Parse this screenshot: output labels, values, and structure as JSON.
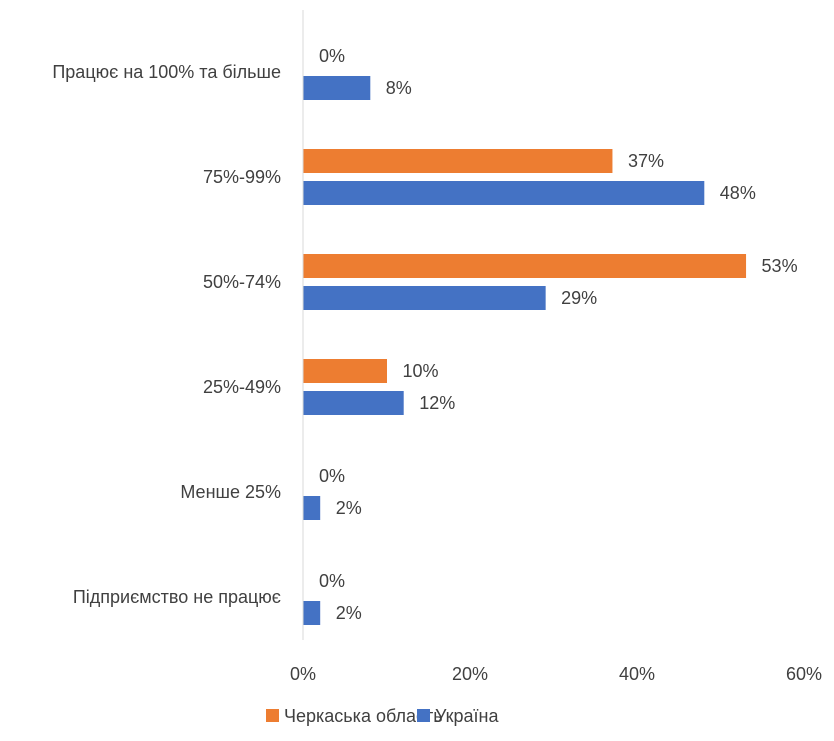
{
  "chart_data": {
    "type": "bar",
    "orientation": "horizontal",
    "categories": [
      "Працює на 100% та більше",
      "75%-99%",
      "50%-74%",
      "25%-49%",
      "Менше 25%",
      "Підприємство не працює"
    ],
    "series": [
      {
        "name": "Черкаська область",
        "color": "#ED7D31",
        "values": [
          0,
          37,
          53,
          10,
          0,
          0
        ],
        "labels": [
          "0%",
          "37%",
          "53%",
          "10%",
          "0%",
          "0%"
        ]
      },
      {
        "name": "Україна",
        "color": "#4472C4",
        "values": [
          8,
          48,
          29,
          12,
          2,
          2
        ],
        "labels": [
          "8%",
          "48%",
          "29%",
          "12%",
          "2%",
          "2%"
        ]
      }
    ],
    "xlim": [
      0,
      60
    ],
    "x_ticks": [
      0,
      20,
      40,
      60
    ],
    "x_tick_labels": [
      "0%",
      "20%",
      "40%",
      "60%"
    ],
    "grid": false,
    "legend_position": "bottom"
  }
}
